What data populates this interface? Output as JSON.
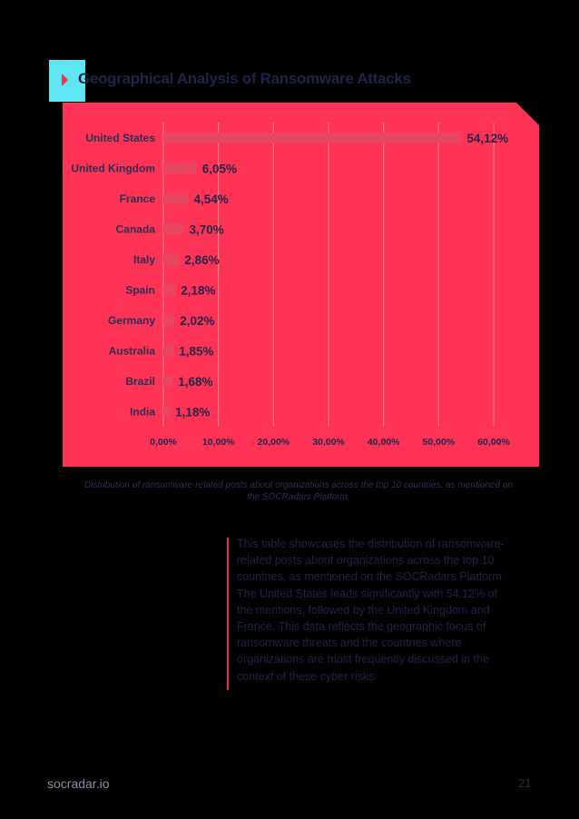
{
  "header": {
    "title": "Geographical Analysis of Ransomware Attacks"
  },
  "chart_data": {
    "type": "bar",
    "orientation": "horizontal",
    "title": "",
    "xlabel": "",
    "ylabel": "",
    "categories": [
      "United States",
      "United Kingdom",
      "France",
      "Canada",
      "Italy",
      "Spain",
      "Germany",
      "Australia",
      "Brazil",
      "India"
    ],
    "values": [
      54.12,
      6.05,
      4.54,
      3.7,
      2.86,
      2.18,
      2.02,
      1.85,
      1.68,
      1.18
    ],
    "value_labels": [
      "54,12%",
      "6,05%",
      "4,54%",
      "3,70%",
      "2,86%",
      "2,18%",
      "2,02%",
      "1,85%",
      "1,68%",
      "1,18%"
    ],
    "xlim": [
      0,
      60
    ],
    "xticks": [
      0,
      10,
      20,
      30,
      40,
      50,
      60
    ],
    "xtick_labels": [
      "0,00%",
      "10,00%",
      "20,00%",
      "30,00%",
      "40,00%",
      "50,00%",
      "60,00%"
    ],
    "grid": "vertical",
    "legend": "none",
    "colors": {
      "panel": "#ff3355",
      "bar": "#e6465f",
      "grid": "#ff8a9b"
    }
  },
  "caption": "Distribution of ransomware-related posts about organizations across the top 10 countries, as mentioned on the SOCRadars Platform.",
  "description": "This table showcases the distribution of ransomware-related posts about organizations across the top 10 countries, as mentioned on the SOCRadars Platform. The United States leads significantly with 54.12% of the mentions, followed by the United Kingdom and France. This data reflects the geographic focus of ransomware threats and the countries where organizations are most frequently discussed in the context of these cyber risks.",
  "footer": {
    "site": "socradar.io",
    "page_number": "21"
  },
  "colors": {
    "accent_cyan": "#5ee6f2",
    "accent_red": "#e8334f",
    "background": "#000000"
  }
}
